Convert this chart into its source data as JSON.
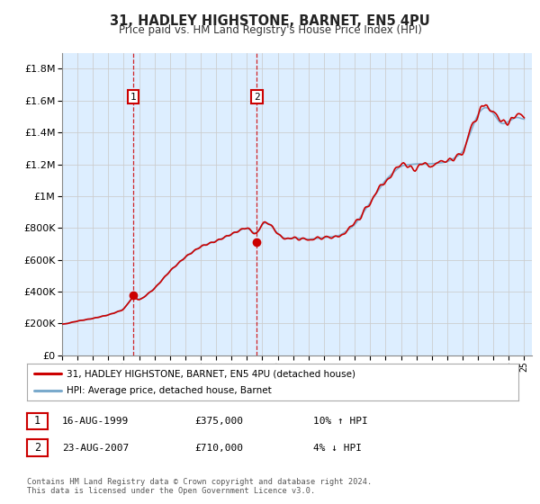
{
  "title": "31, HADLEY HIGHSTONE, BARNET, EN5 4PU",
  "subtitle": "Price paid vs. HM Land Registry's House Price Index (HPI)",
  "legend_label_red": "31, HADLEY HIGHSTONE, BARNET, EN5 4PU (detached house)",
  "legend_label_blue": "HPI: Average price, detached house, Barnet",
  "annotation1_date": "16-AUG-1999",
  "annotation1_price": "£375,000",
  "annotation1_hpi": "10% ↑ HPI",
  "annotation2_date": "23-AUG-2007",
  "annotation2_price": "£710,000",
  "annotation2_hpi": "4% ↓ HPI",
  "footer": "Contains HM Land Registry data © Crown copyright and database right 2024.\nThis data is licensed under the Open Government Licence v3.0.",
  "sale1_year": 1999.625,
  "sale1_price": 375000,
  "sale2_year": 2007.641,
  "sale2_price": 710000,
  "ylim": [
    0,
    1900000
  ],
  "yticks": [
    0,
    200000,
    400000,
    600000,
    800000,
    1000000,
    1200000,
    1400000,
    1600000,
    1800000
  ],
  "red_color": "#cc0000",
  "blue_fill_color": "#c8ddf0",
  "blue_line_color": "#7aaacc",
  "grid_color": "#cccccc",
  "background_color": "#ddeeff",
  "annotation_box_color": "#cc0000",
  "dashed_line_color": "#cc0000"
}
